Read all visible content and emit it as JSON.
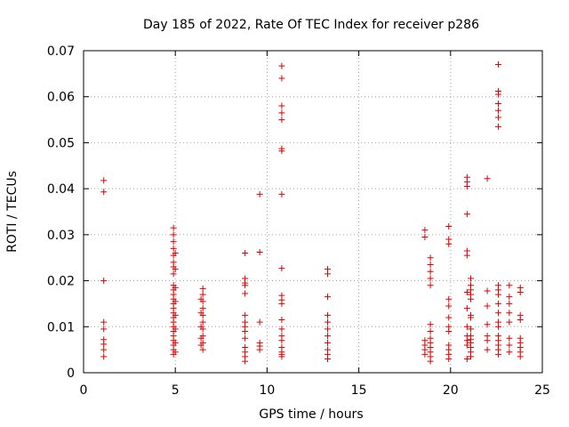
{
  "chart_data": {
    "type": "scatter",
    "title": "Day 185 of 2022, Rate Of TEC Index for receiver p286",
    "xlabel": "GPS time / hours",
    "ylabel": "ROTI / TECUs",
    "xlim": [
      0,
      25
    ],
    "ylim": [
      0,
      0.07
    ],
    "x_ticks": [
      0,
      5,
      10,
      15,
      20,
      25
    ],
    "y_ticks": [
      0,
      0.01,
      0.02,
      0.03,
      0.04,
      0.05,
      0.06,
      0.07
    ],
    "x_tick_labels": [
      "0",
      "5",
      "10",
      "15",
      "20",
      "25"
    ],
    "y_tick_labels": [
      "0",
      "0.01",
      "0.02",
      "0.03",
      "0.04",
      "0.05",
      "0.06",
      "0.07"
    ],
    "grid": true,
    "marker": "plus",
    "color": "#e00000",
    "series": [
      {
        "points": [
          [
            1.1,
            0.0418
          ],
          [
            1.1,
            0.0393
          ],
          [
            1.1,
            0.02
          ],
          [
            1.1,
            0.011
          ],
          [
            1.1,
            0.0095
          ],
          [
            1.1,
            0.0072
          ],
          [
            1.1,
            0.0062
          ],
          [
            1.1,
            0.005
          ],
          [
            1.1,
            0.0035
          ],
          [
            4.9,
            0.0315
          ],
          [
            4.9,
            0.03
          ],
          [
            4.9,
            0.0285
          ],
          [
            4.9,
            0.027
          ],
          [
            4.9,
            0.0255
          ],
          [
            4.9,
            0.024
          ],
          [
            4.9,
            0.023
          ],
          [
            4.9,
            0.0215
          ],
          [
            4.9,
            0.019
          ],
          [
            4.9,
            0.018
          ],
          [
            4.9,
            0.017
          ],
          [
            4.9,
            0.016
          ],
          [
            4.9,
            0.015
          ],
          [
            4.9,
            0.014
          ],
          [
            4.9,
            0.013
          ],
          [
            4.9,
            0.012
          ],
          [
            4.9,
            0.011
          ],
          [
            4.9,
            0.01
          ],
          [
            4.9,
            0.009
          ],
          [
            4.9,
            0.008
          ],
          [
            4.9,
            0.007
          ],
          [
            4.9,
            0.006
          ],
          [
            4.9,
            0.005
          ],
          [
            4.9,
            0.004
          ],
          [
            5.0,
            0.0185
          ],
          [
            5.0,
            0.0155
          ],
          [
            5.0,
            0.0125
          ],
          [
            5.0,
            0.0095
          ],
          [
            5.0,
            0.0065
          ],
          [
            5.0,
            0.0045
          ],
          [
            5.0,
            0.026
          ],
          [
            5.0,
            0.0225
          ],
          [
            6.5,
            0.0183
          ],
          [
            6.5,
            0.017
          ],
          [
            6.5,
            0.0155
          ],
          [
            6.5,
            0.014
          ],
          [
            6.5,
            0.0125
          ],
          [
            6.5,
            0.011
          ],
          [
            6.5,
            0.0095
          ],
          [
            6.5,
            0.008
          ],
          [
            6.5,
            0.0065
          ],
          [
            6.5,
            0.005
          ],
          [
            6.4,
            0.016
          ],
          [
            6.4,
            0.013
          ],
          [
            6.4,
            0.01
          ],
          [
            6.4,
            0.0075
          ],
          [
            6.4,
            0.006
          ],
          [
            8.8,
            0.026
          ],
          [
            8.8,
            0.0205
          ],
          [
            8.8,
            0.0195
          ],
          [
            8.8,
            0.019
          ],
          [
            8.8,
            0.0172
          ],
          [
            8.8,
            0.0125
          ],
          [
            8.8,
            0.011
          ],
          [
            8.8,
            0.01
          ],
          [
            8.8,
            0.009
          ],
          [
            8.8,
            0.0075
          ],
          [
            8.8,
            0.0055
          ],
          [
            8.8,
            0.0045
          ],
          [
            8.8,
            0.0035
          ],
          [
            8.8,
            0.0025
          ],
          [
            9.6,
            0.0388
          ],
          [
            9.6,
            0.0262
          ],
          [
            9.6,
            0.011
          ],
          [
            9.6,
            0.0065
          ],
          [
            9.6,
            0.0058
          ],
          [
            9.6,
            0.005
          ],
          [
            10.8,
            0.0667
          ],
          [
            10.8,
            0.064
          ],
          [
            10.8,
            0.058
          ],
          [
            10.8,
            0.0565
          ],
          [
            10.8,
            0.055
          ],
          [
            10.8,
            0.0487
          ],
          [
            10.8,
            0.0482
          ],
          [
            10.8,
            0.0388
          ],
          [
            10.8,
            0.0227
          ],
          [
            10.8,
            0.0168
          ],
          [
            10.8,
            0.0158
          ],
          [
            10.8,
            0.015
          ],
          [
            10.8,
            0.0115
          ],
          [
            10.8,
            0.0095
          ],
          [
            10.8,
            0.008
          ],
          [
            10.8,
            0.007
          ],
          [
            10.8,
            0.0055
          ],
          [
            10.8,
            0.0045
          ],
          [
            10.8,
            0.004
          ],
          [
            10.8,
            0.0035
          ],
          [
            13.3,
            0.0225
          ],
          [
            13.3,
            0.0215
          ],
          [
            13.3,
            0.0165
          ],
          [
            13.3,
            0.0125
          ],
          [
            13.3,
            0.011
          ],
          [
            13.3,
            0.0095
          ],
          [
            13.3,
            0.008
          ],
          [
            13.3,
            0.0065
          ],
          [
            13.3,
            0.005
          ],
          [
            13.3,
            0.004
          ],
          [
            13.3,
            0.003
          ],
          [
            18.6,
            0.031
          ],
          [
            18.6,
            0.0295
          ],
          [
            18.6,
            0.007
          ],
          [
            18.6,
            0.006
          ],
          [
            18.6,
            0.005
          ],
          [
            18.6,
            0.004
          ],
          [
            18.9,
            0.025
          ],
          [
            18.9,
            0.0235
          ],
          [
            18.9,
            0.022
          ],
          [
            18.9,
            0.0205
          ],
          [
            18.9,
            0.019
          ],
          [
            18.9,
            0.0105
          ],
          [
            18.9,
            0.009
          ],
          [
            18.9,
            0.0075
          ],
          [
            18.9,
            0.0065
          ],
          [
            18.9,
            0.0055
          ],
          [
            18.9,
            0.0045
          ],
          [
            18.9,
            0.0035
          ],
          [
            18.9,
            0.0025
          ],
          [
            19.9,
            0.0318
          ],
          [
            19.9,
            0.029
          ],
          [
            19.9,
            0.028
          ],
          [
            19.9,
            0.016
          ],
          [
            19.9,
            0.0145
          ],
          [
            19.9,
            0.012
          ],
          [
            19.9,
            0.01
          ],
          [
            19.9,
            0.009
          ],
          [
            19.9,
            0.006
          ],
          [
            19.9,
            0.005
          ],
          [
            19.9,
            0.004
          ],
          [
            19.9,
            0.003
          ],
          [
            20.9,
            0.0425
          ],
          [
            20.9,
            0.0415
          ],
          [
            20.9,
            0.0405
          ],
          [
            20.9,
            0.0345
          ],
          [
            20.9,
            0.0265
          ],
          [
            20.9,
            0.0255
          ],
          [
            20.9,
            0.0175
          ],
          [
            20.9,
            0.014
          ],
          [
            20.9,
            0.01
          ],
          [
            20.9,
            0.008
          ],
          [
            20.9,
            0.007
          ],
          [
            20.9,
            0.006
          ],
          [
            20.9,
            0.003
          ],
          [
            21.1,
            0.0205
          ],
          [
            21.1,
            0.019
          ],
          [
            21.1,
            0.018
          ],
          [
            21.1,
            0.017
          ],
          [
            21.1,
            0.016
          ],
          [
            21.1,
            0.0125
          ],
          [
            21.1,
            0.012
          ],
          [
            21.1,
            0.0095
          ],
          [
            21.1,
            0.008
          ],
          [
            21.1,
            0.0072
          ],
          [
            21.1,
            0.0065
          ],
          [
            21.1,
            0.0055
          ],
          [
            21.1,
            0.0045
          ],
          [
            21.1,
            0.0035
          ],
          [
            22.0,
            0.0422
          ],
          [
            22.0,
            0.0178
          ],
          [
            22.0,
            0.0145
          ],
          [
            22.0,
            0.0105
          ],
          [
            22.0,
            0.008
          ],
          [
            22.0,
            0.007
          ],
          [
            22.0,
            0.005
          ],
          [
            22.6,
            0.067
          ],
          [
            22.6,
            0.0612
          ],
          [
            22.6,
            0.0605
          ],
          [
            22.6,
            0.0585
          ],
          [
            22.6,
            0.057
          ],
          [
            22.6,
            0.0555
          ],
          [
            22.6,
            0.0535
          ],
          [
            22.6,
            0.019
          ],
          [
            22.6,
            0.018
          ],
          [
            22.6,
            0.017
          ],
          [
            22.6,
            0.015
          ],
          [
            22.6,
            0.013
          ],
          [
            22.6,
            0.011
          ],
          [
            22.6,
            0.01
          ],
          [
            22.6,
            0.008
          ],
          [
            22.6,
            0.007
          ],
          [
            22.6,
            0.006
          ],
          [
            22.6,
            0.005
          ],
          [
            22.6,
            0.004
          ],
          [
            23.2,
            0.019
          ],
          [
            23.2,
            0.0165
          ],
          [
            23.2,
            0.015
          ],
          [
            23.2,
            0.013
          ],
          [
            23.2,
            0.011
          ],
          [
            23.2,
            0.0075
          ],
          [
            23.2,
            0.006
          ],
          [
            23.2,
            0.0045
          ],
          [
            23.8,
            0.0185
          ],
          [
            23.8,
            0.0175
          ],
          [
            23.8,
            0.0125
          ],
          [
            23.8,
            0.0115
          ],
          [
            23.8,
            0.0075
          ],
          [
            23.8,
            0.0065
          ],
          [
            23.8,
            0.0055
          ],
          [
            23.8,
            0.0045
          ],
          [
            23.8,
            0.0035
          ]
        ]
      }
    ]
  }
}
